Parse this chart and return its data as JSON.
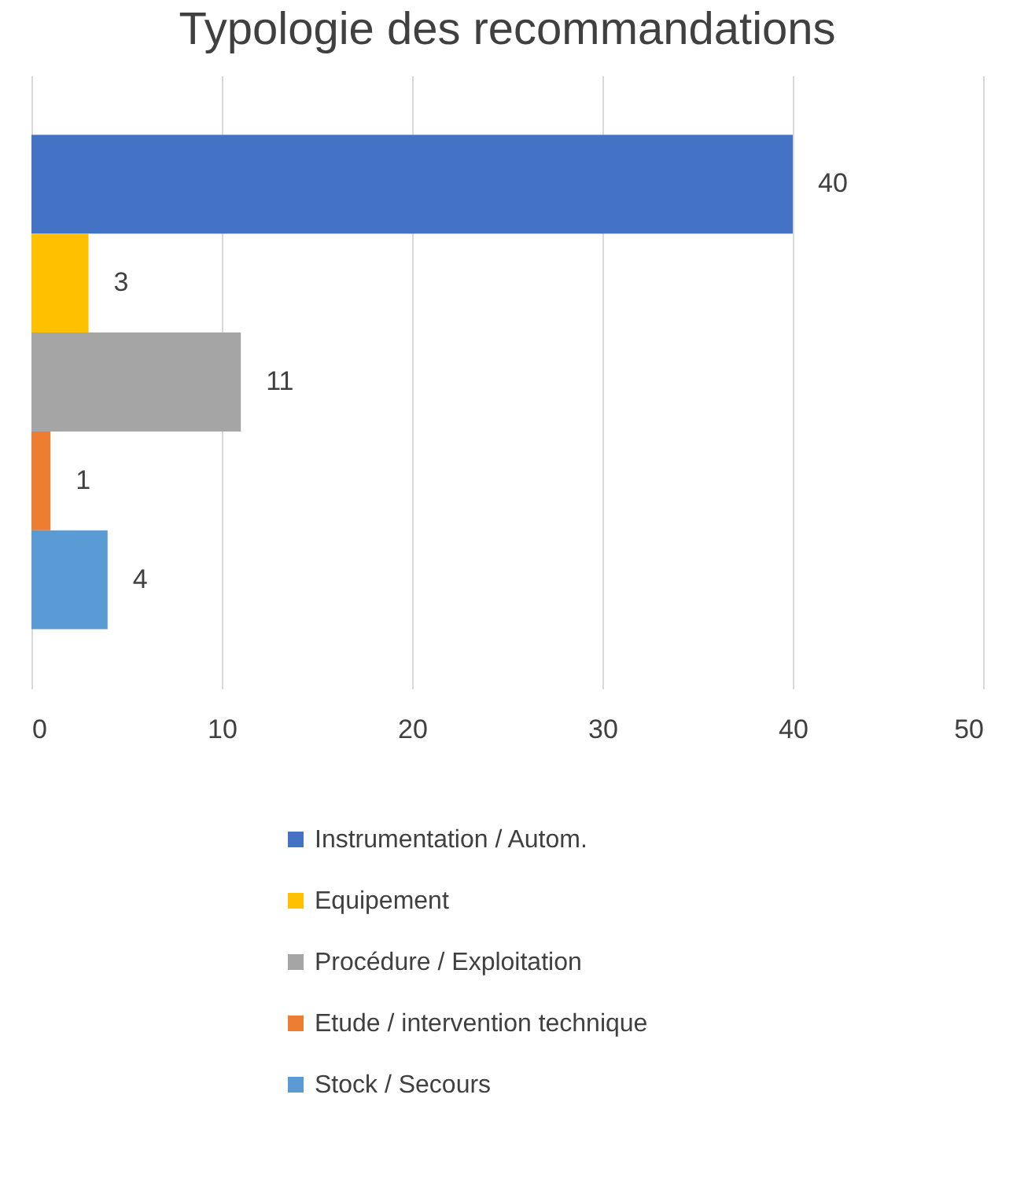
{
  "chart_data": {
    "type": "bar",
    "title": "Typologie des recommandations",
    "orientation": "horizontal",
    "categories": [
      null
    ],
    "series": [
      {
        "name": "Instrumentation / Autom.",
        "color": "#4472c4",
        "values": [
          40
        ]
      },
      {
        "name": "Equipement",
        "color": "#ffc000",
        "values": [
          3
        ]
      },
      {
        "name": "Procédure / Exploitation",
        "color": "#a5a5a5",
        "values": [
          11
        ]
      },
      {
        "name": "Etude / intervention technique",
        "color": "#ed7d31",
        "values": [
          1
        ]
      },
      {
        "name": "Stock / Secours",
        "color": "#5b9bd5",
        "values": [
          4
        ]
      }
    ],
    "xlim": [
      0,
      50
    ],
    "xticks": [
      0,
      10,
      20,
      30,
      40,
      50
    ],
    "grid": "x",
    "data_labels": true,
    "legend": "bottom"
  }
}
